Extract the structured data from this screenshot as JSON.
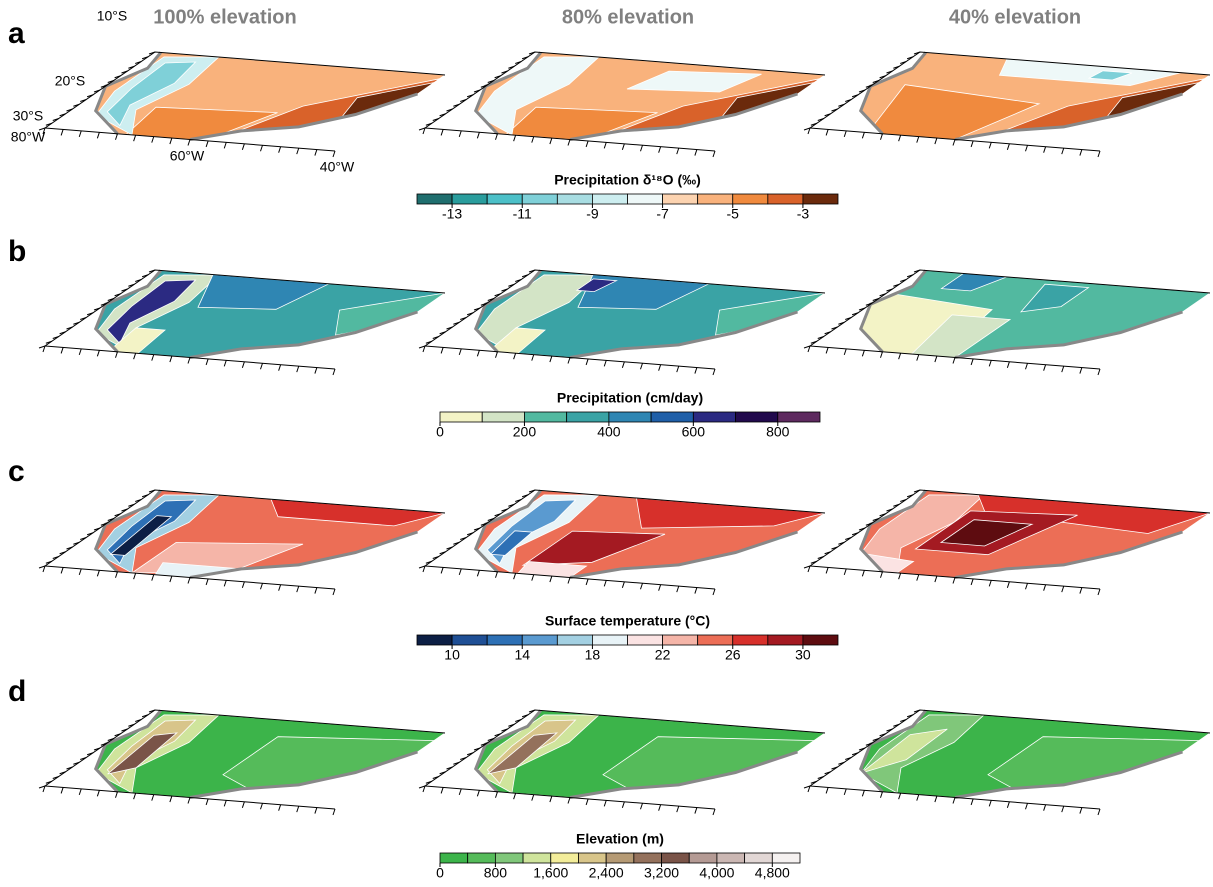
{
  "columns": [
    "100% elevation",
    "80% elevation",
    "40% elevation"
  ],
  "map_labels": {
    "lat": [
      "10°S",
      "20°S",
      "30°S"
    ],
    "lon": [
      "80°W",
      "60°W",
      "40°W"
    ]
  },
  "rows": [
    {
      "label": "a",
      "colorbar": {
        "title": "Precipitation δ¹⁸O (‰)",
        "range": [
          -14,
          -2
        ],
        "ticks": [
          -13,
          -11,
          -9,
          -7,
          -5,
          -3
        ],
        "colors": [
          "#1f6e6e",
          "#2a9d9d",
          "#4cc0c8",
          "#7fd0d8",
          "#a8dde2",
          "#cdeef0",
          "#eef8f8",
          "#fcd3b0",
          "#f9b27c",
          "#f08a3e",
          "#d9622a",
          "#6b2a0c"
        ]
      }
    },
    {
      "label": "b",
      "colorbar": {
        "title": "Precipitation (cm/day)",
        "range": [
          0,
          900
        ],
        "ticks": [
          0,
          200,
          400,
          600,
          800
        ],
        "colors": [
          "#f3f3c6",
          "#d3e4c6",
          "#52b9a0",
          "#3aa3a5",
          "#2f86b3",
          "#1f5fa8",
          "#2b2a82",
          "#220a4d",
          "#5e2a5f"
        ]
      }
    },
    {
      "label": "c",
      "colorbar": {
        "title": "Surface temperature (°C)",
        "range": [
          8,
          32
        ],
        "ticks": [
          10,
          14,
          18,
          22,
          26,
          30
        ],
        "colors": [
          "#0c1f45",
          "#1f4f95",
          "#2d70b5",
          "#5a9ad0",
          "#a3d0e2",
          "#e8f3f7",
          "#fbe3e3",
          "#f5b5a8",
          "#ec6e56",
          "#d7302b",
          "#a41a22",
          "#5e0c10"
        ]
      }
    },
    {
      "label": "d",
      "colorbar": {
        "title": "Elevation (m)",
        "range": [
          0,
          5200
        ],
        "ticks": [
          0,
          800,
          {
            "value": 1600,
            "label": "1,600"
          },
          {
            "value": 2400,
            "label": "2,400"
          },
          {
            "value": 3200,
            "label": "3,200"
          },
          {
            "value": 4000,
            "label": "4,000"
          },
          {
            "value": 4800,
            "label": "4,800"
          }
        ],
        "colors": [
          "#3cb44a",
          "#55bb5a",
          "#80c77a",
          "#cfe49c",
          "#f3ed9a",
          "#d8c58a",
          "#b59a74",
          "#94715c",
          "#7a5448",
          "#b49a94",
          "#cbb7b3",
          "#e2d7d5",
          "#f5f1f0"
        ]
      }
    }
  ]
}
